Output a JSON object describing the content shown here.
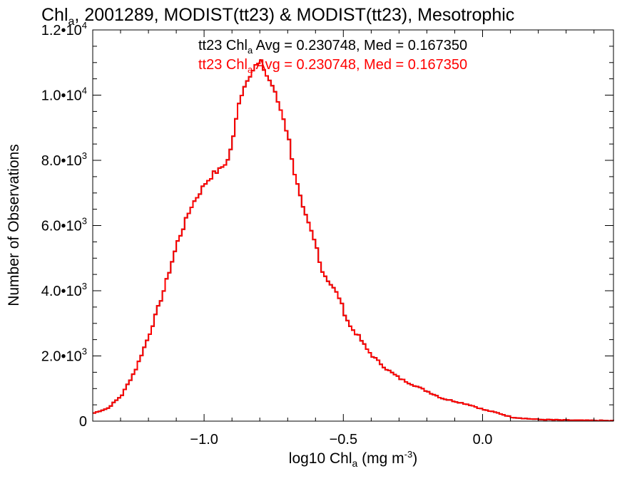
{
  "colors": {
    "series_a": "#000000",
    "series_b": "#ff0000",
    "axis": "#000000"
  },
  "chart_data": {
    "type": "line",
    "title": {
      "pre": "Chl",
      "sub": "a",
      "post": ", 2001289, MODIST(tt23) & MODIST(tt23), Mesotrophic"
    },
    "xlabel": {
      "pre": "log10 Chl",
      "sub": "a",
      "post": " (mg m",
      "sup": "-3",
      "end": ")"
    },
    "ylabel": "Number of Observations",
    "xlim": [
      -1.4,
      0.47
    ],
    "ylim": [
      0,
      12000
    ],
    "xticks": [
      {
        "value": -1.0,
        "label": "−1.0"
      },
      {
        "value": -0.5,
        "label": "−0.5"
      },
      {
        "value": 0.0,
        "label": "0.0"
      }
    ],
    "yticks": [
      {
        "value": 0,
        "label": "0",
        "sup": ""
      },
      {
        "value": 2000,
        "label": "2.0•10",
        "sup": "3"
      },
      {
        "value": 4000,
        "label": "4.0•10",
        "sup": "3"
      },
      {
        "value": 6000,
        "label": "6.0•10",
        "sup": "3"
      },
      {
        "value": 8000,
        "label": "8.0•10",
        "sup": "3"
      },
      {
        "value": 10000,
        "label": "1.0•10",
        "sup": "4"
      },
      {
        "value": 12000,
        "label": "1.2•10",
        "sup": "4"
      }
    ],
    "annotations": [
      {
        "pre": "tt23 Chl",
        "sub": "a",
        "post": " Avg = 0.230748, Med = 0.167350",
        "color": "#000000"
      },
      {
        "pre": "tt23 Chl",
        "sub": "a",
        "post": " Avg = 0.230748, Med = 0.167350",
        "color": "#ff0000"
      }
    ],
    "step": 0.01,
    "series": [
      {
        "color": "#000000",
        "x": [
          -1.4,
          -1.35,
          -1.3,
          -1.25,
          -1.2,
          -1.15,
          -1.1,
          -1.05,
          -1.0,
          -0.97,
          -0.95,
          -0.92,
          -0.9,
          -0.88,
          -0.85,
          -0.82,
          -0.8,
          -0.78,
          -0.76,
          -0.74,
          -0.72,
          -0.7,
          -0.68,
          -0.65,
          -0.62,
          -0.6,
          -0.58,
          -0.55,
          -0.52,
          -0.5,
          -0.48,
          -0.45,
          -0.42,
          -0.4,
          -0.35,
          -0.3,
          -0.25,
          -0.2,
          -0.15,
          -0.1,
          -0.05,
          0.0,
          0.05,
          0.1,
          0.15,
          0.2,
          0.3,
          0.4,
          0.47
        ],
        "y": [
          250,
          400,
          800,
          1600,
          2700,
          4000,
          5500,
          6600,
          7300,
          7600,
          7700,
          8000,
          8700,
          9800,
          10500,
          10900,
          11000,
          10600,
          10300,
          9800,
          9300,
          8600,
          7600,
          6500,
          5800,
          5300,
          4600,
          4200,
          3800,
          3300,
          2900,
          2600,
          2200,
          2000,
          1600,
          1300,
          1100,
          900,
          700,
          600,
          500,
          350,
          250,
          120,
          80,
          50,
          30,
          20,
          10
        ]
      },
      {
        "color": "#ff0000",
        "x": [
          -1.4,
          -1.35,
          -1.3,
          -1.25,
          -1.2,
          -1.15,
          -1.1,
          -1.05,
          -1.0,
          -0.97,
          -0.95,
          -0.92,
          -0.9,
          -0.88,
          -0.85,
          -0.82,
          -0.8,
          -0.78,
          -0.76,
          -0.74,
          -0.72,
          -0.7,
          -0.68,
          -0.65,
          -0.62,
          -0.6,
          -0.58,
          -0.55,
          -0.52,
          -0.5,
          -0.48,
          -0.45,
          -0.42,
          -0.4,
          -0.35,
          -0.3,
          -0.25,
          -0.2,
          -0.15,
          -0.1,
          -0.05,
          0.0,
          0.05,
          0.1,
          0.15,
          0.2,
          0.3,
          0.4,
          0.47
        ],
        "y": [
          250,
          400,
          800,
          1600,
          2700,
          4000,
          5500,
          6600,
          7300,
          7600,
          7700,
          8000,
          8700,
          9800,
          10500,
          10900,
          11000,
          10600,
          10300,
          9800,
          9300,
          8600,
          7600,
          6500,
          5800,
          5300,
          4600,
          4200,
          3800,
          3300,
          2900,
          2600,
          2200,
          2000,
          1600,
          1300,
          1100,
          900,
          700,
          600,
          500,
          350,
          250,
          120,
          80,
          50,
          30,
          20,
          10
        ]
      }
    ]
  }
}
